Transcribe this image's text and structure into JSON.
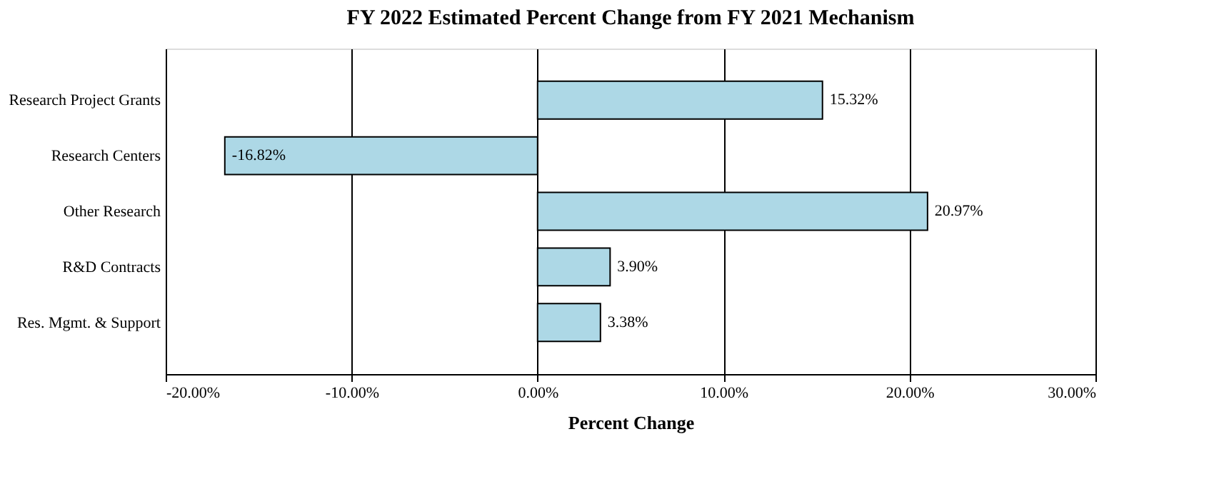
{
  "chart_data": {
    "type": "bar",
    "orientation": "horizontal",
    "title": "FY 2022 Estimated Percent Change from FY 2021 Mechanism",
    "xlabel": "Percent Change",
    "categories": [
      "Research Project Grants",
      "Research Centers",
      "Other Research",
      "R&D Contracts",
      "Res. Mgmt. & Support"
    ],
    "values": [
      15.32,
      -16.82,
      20.97,
      3.9,
      3.38
    ],
    "value_labels": [
      "15.32%",
      "-16.82%",
      "20.97%",
      "3.90%",
      "3.38%"
    ],
    "color": "#add8e6",
    "xlim": [
      -20,
      30
    ],
    "xticks": [
      {
        "value": -20,
        "label": "-20.00%"
      },
      {
        "value": -10,
        "label": "-10.00%"
      },
      {
        "value": 0,
        "label": "0.00%"
      },
      {
        "value": 10,
        "label": "10.00%"
      },
      {
        "value": 20,
        "label": "20.00%"
      },
      {
        "value": 30,
        "label": "30.00%"
      }
    ],
    "grid": "x"
  }
}
